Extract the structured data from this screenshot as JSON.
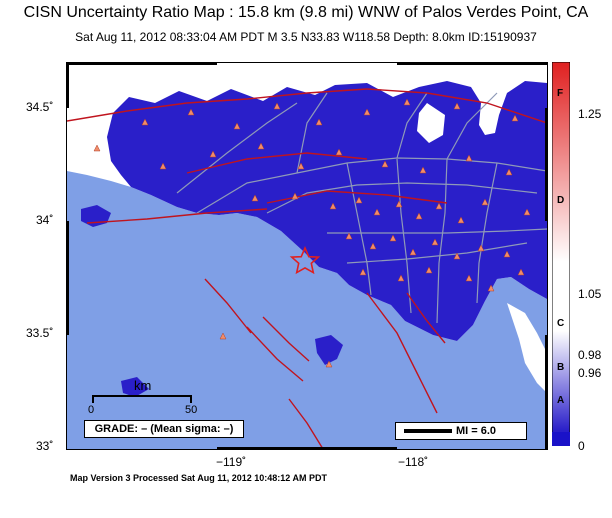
{
  "header": {
    "title": "CISN Uncertainty Ratio Map : 15.8 km (9.8 mi) WNW of Palos Verdes Point, CA",
    "subtitle": "Sat Aug 11, 2012 08:33:04 AM PDT   M 3.5   N33.83 W118.58   Depth: 8.0km   ID:15190937"
  },
  "map": {
    "lat_labels": [
      "34.5˚",
      "34˚",
      "33.5˚",
      "33˚"
    ],
    "lon_labels": [
      "−119˚",
      "−118˚"
    ],
    "epicenter": {
      "lat": 33.83,
      "lon": -118.58
    },
    "colors": {
      "ocean": "#7f9fe6",
      "land_high_uncertainty": "#2a1fc9",
      "land_low_uncertainty": "#ffffff",
      "roads": "#8f9ab8",
      "faults": "#c0141e",
      "stations": "#f08c6a",
      "epicenter": "#e02020"
    },
    "scale_bar": {
      "unit": "km",
      "start": "0",
      "end": "50"
    },
    "grade_text": "GRADE: – (Mean sigma: –)",
    "mi_text": "MI = 6.0"
  },
  "colorbar": {
    "values": [
      "1.25",
      "1.05",
      "0.98",
      "0.96",
      "0"
    ],
    "grades": [
      "F",
      "D",
      "C",
      "B",
      "A"
    ],
    "colors": {
      "top": "#e02020",
      "mid": "#ffffff",
      "bottom": "#2a1fc9"
    }
  },
  "footer": {
    "text": "Map Version 3 Processed Sat Aug 11, 2012 10:48:12 AM PDT"
  }
}
